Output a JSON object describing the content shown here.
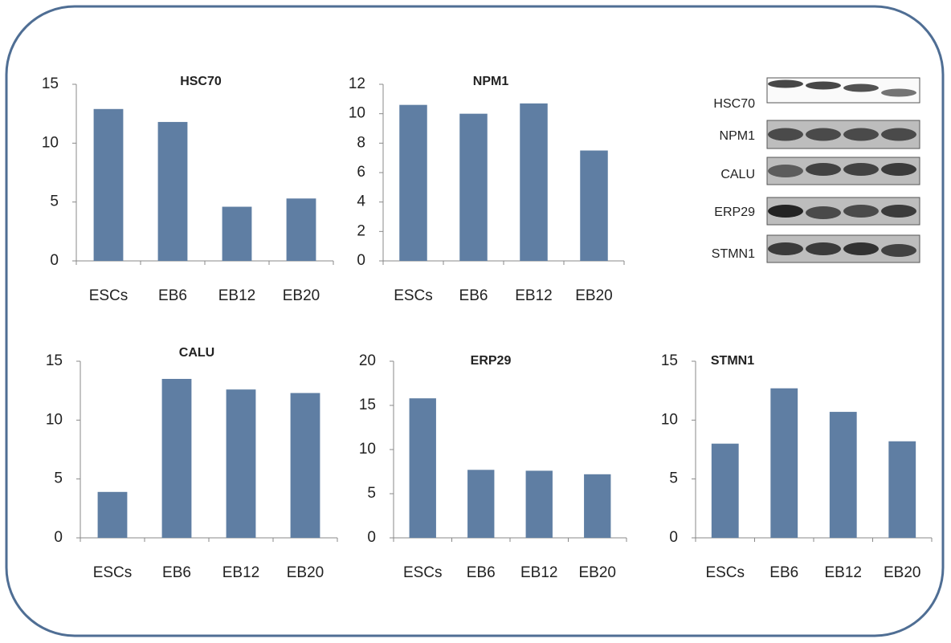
{
  "chart_data": [
    {
      "type": "bar",
      "title": "HSC70",
      "categories": [
        "ESCs",
        "EB6",
        "EB12",
        "EB20"
      ],
      "values": [
        12.9,
        11.8,
        4.6,
        5.3
      ],
      "color": "#5f7ea3",
      "ylim": [
        0,
        15
      ],
      "yticks": [
        0,
        5,
        10,
        15
      ]
    },
    {
      "type": "bar",
      "title": "NPM1",
      "categories": [
        "ESCs",
        "EB6",
        "EB12",
        "EB20"
      ],
      "values": [
        10.6,
        10.0,
        10.7,
        7.5
      ],
      "color": "#5f7ea3",
      "ylim": [
        0,
        12
      ],
      "yticks": [
        0,
        2,
        4,
        6,
        8,
        10,
        12
      ]
    },
    {
      "type": "bar",
      "title": "CALU",
      "categories": [
        "ESCs",
        "EB6",
        "EB12",
        "EB20"
      ],
      "values": [
        3.9,
        13.5,
        12.6,
        12.3
      ],
      "color": "#5f7ea3",
      "ylim": [
        0,
        15
      ],
      "yticks": [
        0,
        5,
        10,
        15
      ]
    },
    {
      "type": "bar",
      "title": "ERP29",
      "categories": [
        "ESCs",
        "EB6",
        "EB12",
        "EB20"
      ],
      "values": [
        15.8,
        7.7,
        7.6,
        7.2
      ],
      "color": "#5f7ea3",
      "ylim": [
        0,
        20
      ],
      "yticks": [
        0,
        5,
        10,
        15,
        20
      ]
    },
    {
      "type": "bar",
      "title": "STMN1",
      "categories": [
        "ESCs",
        "EB6",
        "EB12",
        "EB20"
      ],
      "values": [
        8.0,
        12.7,
        10.7,
        8.2
      ],
      "color": "#5f7ea3",
      "ylim": [
        0,
        15
      ],
      "yticks": [
        0,
        5,
        10,
        15
      ]
    }
  ],
  "western_blot": {
    "labels": [
      "HSC70",
      "NPM1",
      "CALU",
      "ERP29",
      "STMN1"
    ]
  }
}
